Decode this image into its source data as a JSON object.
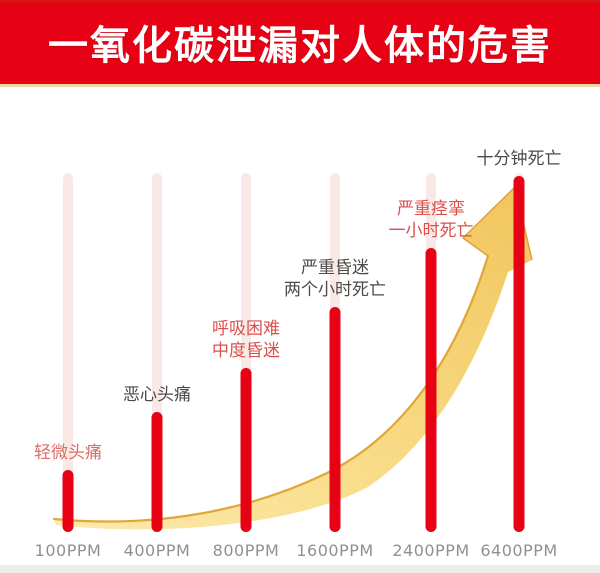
{
  "title": "一氧化碳泄漏对人体的危害",
  "colors": {
    "banner": "#e60114",
    "banner_underline": "#ecd8a2",
    "bar": "#e60114",
    "bar_track": "#f8e9e7",
    "label_rose": "#db6d66",
    "label_red": "#dd4f4c",
    "label_dark": "#4d4a48",
    "axis_label": "#909090",
    "arrow_fill_light": "#fce9ae",
    "arrow_fill_deep": "#f1c55c",
    "arrow_edge": "#dfa63a"
  },
  "chart_data": {
    "type": "bar",
    "title": "一氧化碳泄漏对人体的危害",
    "xlabel": "",
    "ylabel": "",
    "grid": false,
    "legend": false,
    "trend_arrow": "golden exponential arrow rising left-to-right",
    "categories": [
      "100PPM",
      "400PPM",
      "800PPM",
      "1600PPM",
      "2400PPM",
      "6400PPM"
    ],
    "values": [
      62,
      120,
      164,
      225,
      284,
      356
    ],
    "values_note": "relative severity shown as red bar height in pixels; no numeric y-axis shown",
    "annotations": [
      {
        "category": "100PPM",
        "lines": [
          "轻微头痛"
        ],
        "emphasis": "rose"
      },
      {
        "category": "400PPM",
        "lines": [
          "恶心头痛"
        ],
        "emphasis": "dark"
      },
      {
        "category": "800PPM",
        "lines": [
          "呼吸困难",
          "中度昏迷"
        ],
        "emphasis": "red"
      },
      {
        "category": "1600PPM",
        "lines": [
          "严重昏迷",
          "两个小时死亡"
        ],
        "emphasis": "dark"
      },
      {
        "category": "2400PPM",
        "lines": [
          "严重痉挛",
          "一小时死亡"
        ],
        "emphasis": "red"
      },
      {
        "category": "6400PPM",
        "lines": [
          "十分钟死亡"
        ],
        "emphasis": "dark"
      }
    ]
  }
}
